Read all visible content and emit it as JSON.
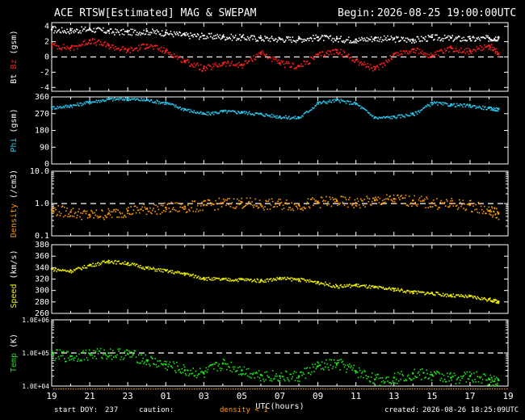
{
  "header": {
    "title": "ACE RTSW[Estimated] MAG & SWEPAM",
    "begin_label": "Begin:",
    "begin_value": "2026-08-25 19:00:00UTC"
  },
  "footer": {
    "start_doy_label": "start DOY:",
    "start_doy_value": "237",
    "caution_label": "caution:",
    "caution_note": "density < 1",
    "created_label": "created:",
    "created_value": "2026-08-26 18:25:09UTC"
  },
  "colors": {
    "background": "#000000",
    "axes": "#ffffff",
    "bt": "#ffffff",
    "bz": "#ff2020",
    "phi": "#27c8ee",
    "density": "#ff9a00",
    "speed": "#f0f000",
    "temp": "#19e619",
    "caution": "#ff9a00"
  },
  "chart_data": [
    {
      "type": "scatter",
      "panel": "mag",
      "ylabel": [
        "Bt",
        "Bz",
        "(gsm)"
      ],
      "ylim": [
        -4.5,
        4.5
      ],
      "yticks": [
        "4",
        "2",
        "0",
        "-2",
        "-4"
      ],
      "ytick_values": [
        4,
        2,
        0,
        -2,
        -4
      ],
      "reference_line": 0,
      "x_hours": [
        0,
        1,
        2,
        3,
        4,
        5,
        6,
        7,
        8,
        9,
        10,
        11,
        12,
        13,
        14,
        15,
        16,
        17,
        18,
        19,
        20,
        21,
        22,
        23,
        23.5
      ],
      "series": [
        {
          "name": "Bt",
          "values": [
            3.6,
            3.5,
            3.7,
            3.4,
            3.3,
            3.4,
            3.2,
            2.9,
            2.8,
            2.7,
            2.6,
            2.5,
            2.4,
            2.4,
            2.6,
            2.4,
            2.3,
            2.5,
            2.4,
            2.3,
            2.6,
            2.5,
            2.4,
            2.5,
            2.6
          ]
        },
        {
          "name": "Bz",
          "values": [
            1.6,
            1.2,
            2.2,
            1.5,
            0.9,
            1.6,
            0.8,
            -0.5,
            -1.5,
            -0.8,
            -1.0,
            0.6,
            -0.8,
            -1.2,
            0.3,
            0.9,
            -0.4,
            -1.6,
            0.4,
            1.0,
            0.2,
            1.2,
            0.8,
            1.5,
            0.4
          ]
        }
      ]
    },
    {
      "type": "scatter",
      "panel": "phi",
      "ylabel": [
        "Phi",
        "(gsm)"
      ],
      "ylim": [
        0,
        360
      ],
      "yticks": [
        "360",
        "270",
        "180",
        "90",
        "0"
      ],
      "ytick_values": [
        360,
        270,
        180,
        90,
        0
      ],
      "x_hours": [
        0,
        1,
        2,
        3,
        4,
        5,
        6,
        7,
        8,
        9,
        10,
        11,
        12,
        13,
        14,
        15,
        16,
        17,
        18,
        19,
        20,
        21,
        22,
        23,
        23.5
      ],
      "series": [
        {
          "name": "Phi",
          "values": [
            305,
            315,
            335,
            350,
            352,
            345,
            330,
            295,
            270,
            285,
            280,
            270,
            255,
            250,
            330,
            345,
            325,
            250,
            255,
            270,
            330,
            320,
            315,
            300,
            295
          ]
        }
      ]
    },
    {
      "type": "scatter",
      "panel": "density",
      "ylabel": [
        "Density",
        "(/cm3)"
      ],
      "yscale": "log",
      "ylim": [
        0.1,
        10.0
      ],
      "yticks": [
        "10.0",
        "1.0",
        "0.1"
      ],
      "ytick_values": [
        10.0,
        1.0,
        0.1
      ],
      "reference_line": 1.0,
      "x_hours": [
        0,
        1,
        2,
        3,
        4,
        5,
        6,
        7,
        8,
        9,
        10,
        11,
        12,
        13,
        14,
        15,
        16,
        17,
        18,
        19,
        20,
        21,
        22,
        23,
        23.5
      ],
      "series": [
        {
          "name": "Density",
          "values": [
            0.65,
            0.55,
            0.45,
            0.5,
            0.6,
            0.7,
            0.75,
            0.8,
            0.9,
            1.05,
            1.1,
            0.95,
            1.0,
            0.9,
            1.15,
            1.2,
            1.05,
            1.25,
            1.4,
            1.25,
            1.05,
            1.0,
            0.9,
            0.6,
            0.5
          ]
        }
      ]
    },
    {
      "type": "scatter",
      "panel": "speed",
      "ylabel": [
        "Speed",
        "(km/s)"
      ],
      "ylim": [
        260,
        380
      ],
      "yticks": [
        "380",
        "360",
        "340",
        "320",
        "300",
        "280",
        "260"
      ],
      "ytick_values": [
        380,
        360,
        340,
        320,
        300,
        280,
        260
      ],
      "x_hours": [
        0,
        1,
        2,
        3,
        4,
        5,
        6,
        7,
        8,
        9,
        10,
        11,
        12,
        13,
        14,
        15,
        16,
        17,
        18,
        19,
        20,
        21,
        22,
        23,
        23.5
      ],
      "series": [
        {
          "name": "Speed",
          "values": [
            338,
            335,
            345,
            352,
            348,
            340,
            335,
            330,
            322,
            320,
            320,
            318,
            322,
            320,
            315,
            308,
            310,
            306,
            303,
            298,
            296,
            292,
            290,
            285,
            281
          ]
        }
      ]
    },
    {
      "type": "scatter",
      "panel": "temp",
      "ylabel": [
        "Temp",
        "(K)"
      ],
      "yscale": "log",
      "ylim": [
        10000,
        1000000
      ],
      "yticks": [
        "1.0E+06",
        "1.0E+05",
        "1.0E+04"
      ],
      "ytick_values": [
        1000000,
        100000,
        10000
      ],
      "reference_line": 100000,
      "x_hours": [
        0,
        1,
        2,
        3,
        4,
        5,
        6,
        7,
        8,
        9,
        10,
        11,
        12,
        13,
        14,
        15,
        16,
        17,
        18,
        19,
        20,
        21,
        22,
        23,
        23.5
      ],
      "series": [
        {
          "name": "Temp",
          "values": [
            90000,
            80000,
            95000,
            100000,
            95000,
            60000,
            45000,
            30000,
            24000,
            48000,
            30000,
            22000,
            20000,
            20000,
            40000,
            48000,
            28000,
            16000,
            18000,
            24000,
            22000,
            18000,
            20000,
            16000,
            15000
          ]
        }
      ]
    }
  ],
  "x_axis": {
    "label": "UTC(hours)",
    "ticks": [
      "19",
      "21",
      "23",
      "01",
      "03",
      "05",
      "07",
      "09",
      "11",
      "13",
      "15",
      "17",
      "19"
    ],
    "tick_offsets_hours": [
      0,
      2,
      4,
      6,
      8,
      10,
      12,
      14,
      16,
      18,
      20,
      22,
      24
    ],
    "range_hours": [
      0,
      24
    ]
  }
}
